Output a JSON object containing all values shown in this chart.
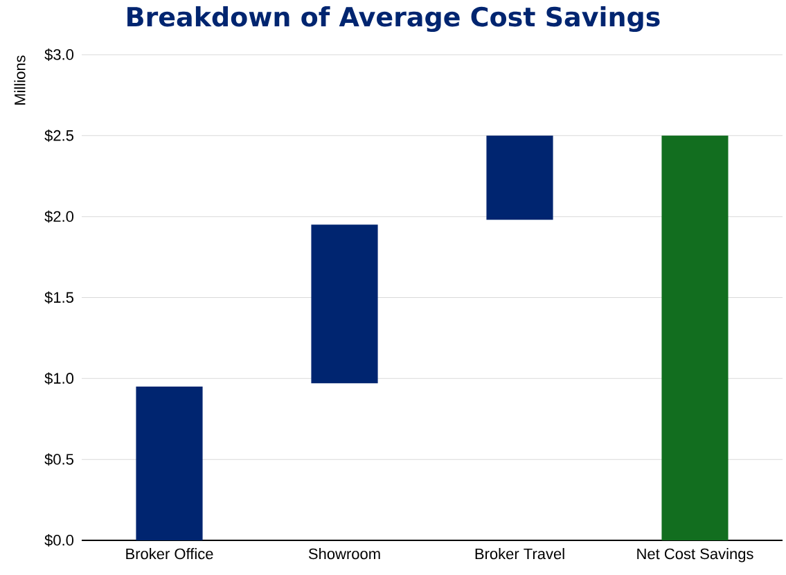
{
  "chart_data": {
    "type": "bar",
    "title": "Breakdown of Average Cost Savings",
    "ylabel": "Millions",
    "categories": [
      "Broker Office",
      "Showroom",
      "Broker Travel",
      "Net Cost Savings"
    ],
    "values": [
      0.95,
      0.98,
      0.52,
      2.5
    ],
    "base": [
      0,
      0.97,
      1.98,
      0
    ],
    "colors": [
      "#002570",
      "#002570",
      "#002570",
      "#126e1f"
    ],
    "ylim": [
      0,
      3
    ],
    "yticks": [
      {
        "value": 0,
        "label": "$0.0"
      },
      {
        "value": 0.5,
        "label": "$0.5"
      },
      {
        "value": 1,
        "label": "$1.0"
      },
      {
        "value": 1.5,
        "label": "$1.5"
      },
      {
        "value": 2,
        "label": "$2.0"
      },
      {
        "value": 2.5,
        "label": "$2.5"
      },
      {
        "value": 3,
        "label": "$3.0"
      }
    ],
    "grid": "y"
  }
}
